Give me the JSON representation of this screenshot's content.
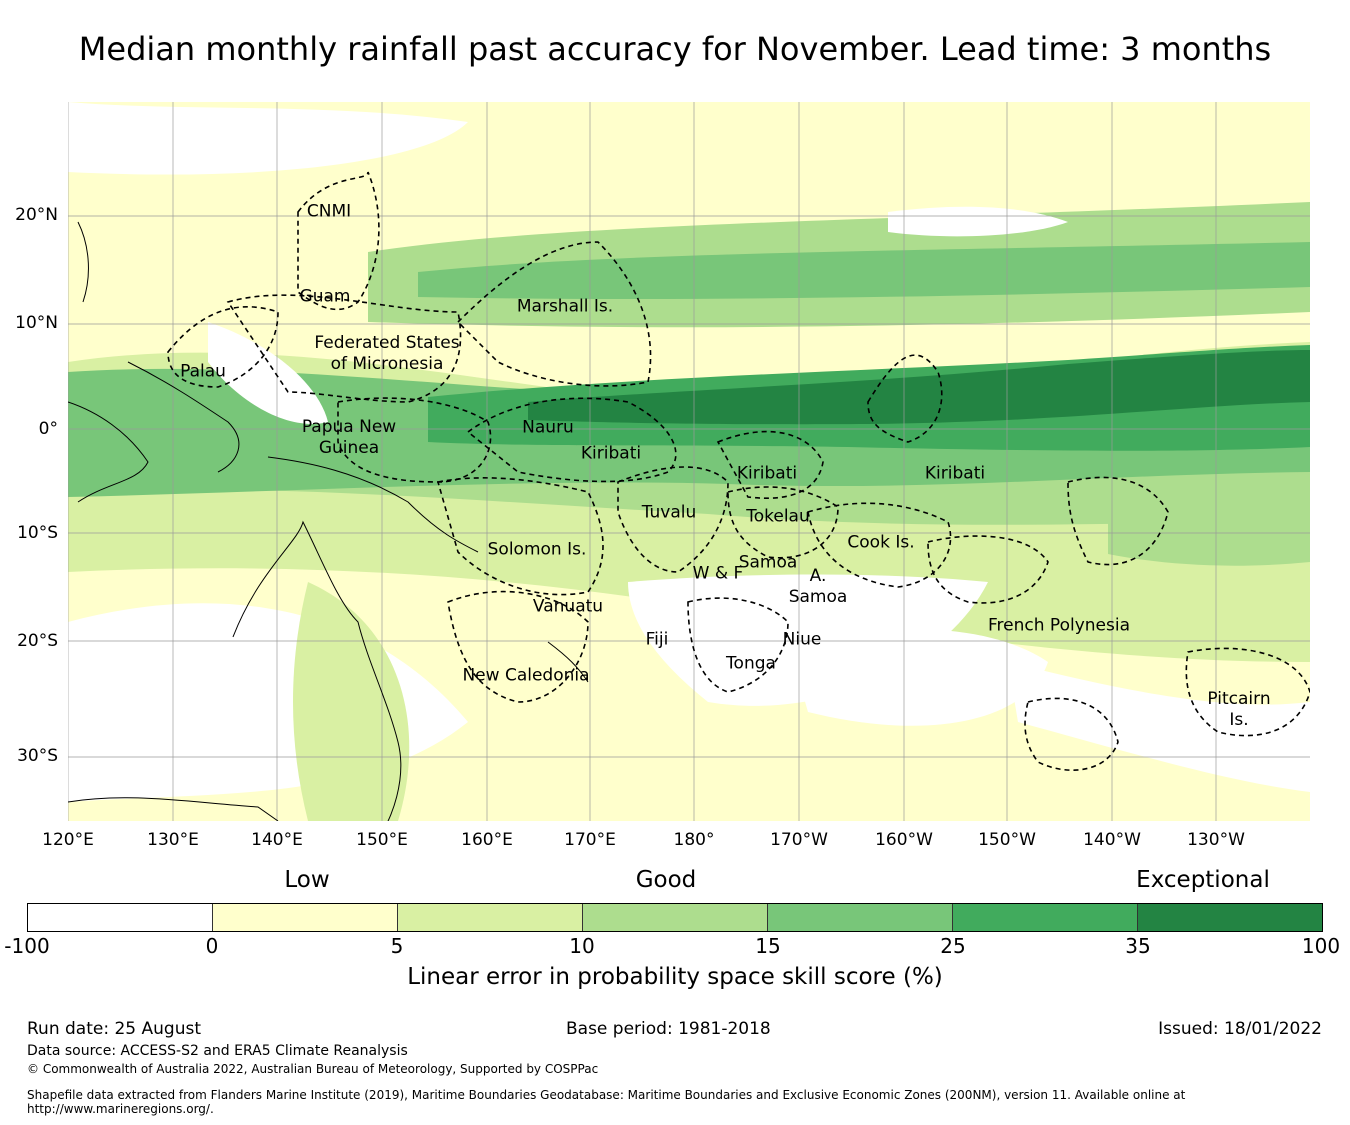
{
  "title": "Median monthly rainfall past accuracy for November. Lead time: 3 months",
  "map": {
    "lat_labels": [
      "20°N",
      "10°N",
      "0°",
      "10°S",
      "20°S",
      "30°S"
    ],
    "lon_labels": [
      "120°E",
      "130°E",
      "140°E",
      "150°E",
      "160°E",
      "170°E",
      "180°",
      "170°W",
      "160°W",
      "150°W",
      "140°W",
      "130°W"
    ],
    "regions": [
      "CNMI",
      "Guam",
      "Marshall Is.",
      "Federated States\nof Micronesia",
      "Palau",
      "Papua New\nGuinea",
      "Nauru",
      "Kiribati",
      "Kiribati",
      "Kiribati",
      "Tuvalu",
      "Tokelau",
      "Solomon Is.",
      "Cook Is.",
      "Samoa",
      "W & F",
      "A.\nSamoa",
      "Vanuatu",
      "Fiji",
      "Niue",
      "Tonga",
      "French Polynesia",
      "New Caledonia",
      "Pitcairn\nIs."
    ]
  },
  "legend": {
    "categories": [
      "Low",
      "Good",
      "Exceptional"
    ],
    "colors": [
      "#ffffff",
      "#ffffcc",
      "#d9f0a3",
      "#addd8e",
      "#78c679",
      "#41ab5d",
      "#238443"
    ],
    "ticks": [
      "-100",
      "0",
      "5",
      "10",
      "15",
      "25",
      "35",
      "100"
    ],
    "label": "Linear error in probability space skill score (%)"
  },
  "footer": {
    "run_date": "Run date: 25 August",
    "base_period": "Base period: 1981-2018",
    "issued": "Issued: 18/01/2022",
    "data_source": "Data source: ACCESS-S2 and ERA5 Climate Reanalysis",
    "copyright": "© Commonwealth of Australia 2022, Australian Bureau of Meteorology, Supported by COSPPac",
    "shapefile_1": "Shapefile data extracted from Flanders Marine Institute (2019), Maritime Boundaries Geodatabase: Maritime Boundaries and Exclusive Economic Zones (200NM), version 11. Available online at",
    "shapefile_2": "http://www.marineregions.org/."
  }
}
